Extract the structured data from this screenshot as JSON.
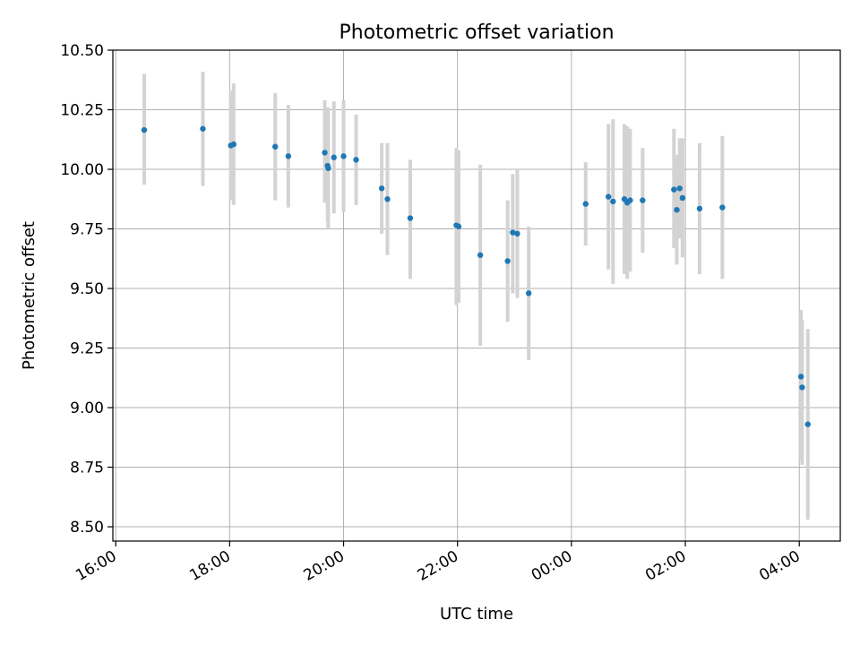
{
  "chart_data": {
    "type": "scatter",
    "title": "Photometric offset variation",
    "xlabel": "UTC time",
    "ylabel": "Photometric offset",
    "grid": true,
    "ylim": [
      8.44,
      10.5
    ],
    "yticks": [
      "8.50",
      "8.75",
      "9.00",
      "9.25",
      "9.50",
      "9.75",
      "10.00",
      "10.25",
      "10.50"
    ],
    "xlim_hours": [
      15.95,
      28.72
    ],
    "xtick_labels": [
      "16:00",
      "18:00",
      "20:00",
      "22:00",
      "00:00",
      "02:00",
      "04:00"
    ],
    "marker_color": "#1f77b4",
    "errorbar_color": "#d3d3d3",
    "series": [
      {
        "name": "Photometric offset",
        "points": [
          {
            "t": 16.5,
            "y": 10.165,
            "lo": 9.935,
            "hi": 10.4
          },
          {
            "t": 17.53,
            "y": 10.17,
            "lo": 9.93,
            "hi": 10.41
          },
          {
            "t": 18.02,
            "y": 10.1,
            "lo": 9.87,
            "hi": 10.33
          },
          {
            "t": 18.07,
            "y": 10.105,
            "lo": 9.85,
            "hi": 10.36
          },
          {
            "t": 18.8,
            "y": 10.095,
            "lo": 9.87,
            "hi": 10.32
          },
          {
            "t": 19.03,
            "y": 10.055,
            "lo": 9.84,
            "hi": 10.27
          },
          {
            "t": 19.67,
            "y": 10.07,
            "lo": 9.86,
            "hi": 10.29
          },
          {
            "t": 19.72,
            "y": 10.015,
            "lo": 9.78,
            "hi": 10.25
          },
          {
            "t": 19.73,
            "y": 10.005,
            "lo": 9.75,
            "hi": 10.26
          },
          {
            "t": 19.83,
            "y": 10.05,
            "lo": 9.815,
            "hi": 10.285
          },
          {
            "t": 20.0,
            "y": 10.055,
            "lo": 9.82,
            "hi": 10.29
          },
          {
            "t": 20.22,
            "y": 10.04,
            "lo": 9.85,
            "hi": 10.23
          },
          {
            "t": 20.67,
            "y": 9.92,
            "lo": 9.73,
            "hi": 10.11
          },
          {
            "t": 20.77,
            "y": 9.875,
            "lo": 9.64,
            "hi": 10.11
          },
          {
            "t": 21.17,
            "y": 9.795,
            "lo": 9.54,
            "hi": 10.04
          },
          {
            "t": 21.98,
            "y": 9.765,
            "lo": 9.43,
            "hi": 10.09
          },
          {
            "t": 22.02,
            "y": 9.76,
            "lo": 9.44,
            "hi": 10.08
          },
          {
            "t": 22.4,
            "y": 9.64,
            "lo": 9.26,
            "hi": 10.02
          },
          {
            "t": 22.88,
            "y": 9.615,
            "lo": 9.36,
            "hi": 9.87
          },
          {
            "t": 22.97,
            "y": 9.735,
            "lo": 9.48,
            "hi": 9.98
          },
          {
            "t": 23.05,
            "y": 9.73,
            "lo": 9.46,
            "hi": 10.0
          },
          {
            "t": 23.25,
            "y": 9.48,
            "lo": 9.2,
            "hi": 9.76
          },
          {
            "t": 24.25,
            "y": 9.855,
            "lo": 9.68,
            "hi": 10.03
          },
          {
            "t": 24.65,
            "y": 9.885,
            "lo": 9.58,
            "hi": 10.19
          },
          {
            "t": 24.73,
            "y": 9.865,
            "lo": 9.52,
            "hi": 10.21
          },
          {
            "t": 24.93,
            "y": 9.875,
            "lo": 9.56,
            "hi": 10.19
          },
          {
            "t": 24.98,
            "y": 9.86,
            "lo": 9.54,
            "hi": 10.18
          },
          {
            "t": 25.03,
            "y": 9.87,
            "lo": 9.57,
            "hi": 10.17
          },
          {
            "t": 25.25,
            "y": 9.87,
            "lo": 9.65,
            "hi": 10.09
          },
          {
            "t": 25.8,
            "y": 9.915,
            "lo": 9.67,
            "hi": 10.17
          },
          {
            "t": 25.85,
            "y": 9.83,
            "lo": 9.6,
            "hi": 10.06
          },
          {
            "t": 25.9,
            "y": 9.92,
            "lo": 9.71,
            "hi": 10.13
          },
          {
            "t": 25.95,
            "y": 9.88,
            "lo": 9.63,
            "hi": 10.13
          },
          {
            "t": 26.25,
            "y": 9.835,
            "lo": 9.56,
            "hi": 10.11
          },
          {
            "t": 26.65,
            "y": 9.84,
            "lo": 9.54,
            "hi": 10.14
          },
          {
            "t": 28.03,
            "y": 9.13,
            "lo": 8.78,
            "hi": 9.41
          },
          {
            "t": 28.05,
            "y": 9.085,
            "lo": 8.76,
            "hi": 9.37
          },
          {
            "t": 28.15,
            "y": 8.93,
            "lo": 8.53,
            "hi": 9.33
          }
        ]
      }
    ]
  }
}
